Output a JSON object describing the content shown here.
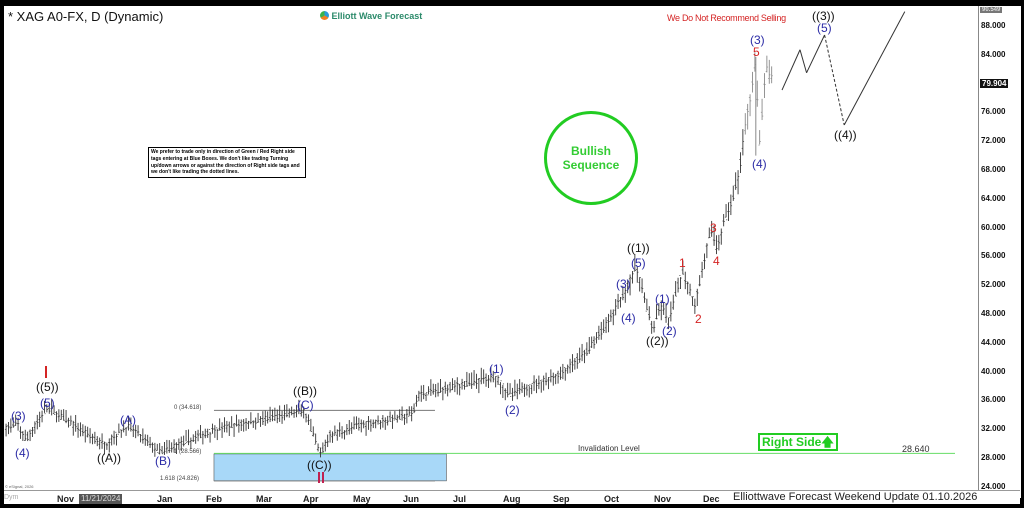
{
  "header": {
    "title": "* XAG A0-FX, D (Dynamic)",
    "logo_text": "Elliott Wave Forecast"
  },
  "notice": "We prefer to trade only in direction of Green / Red Right side tags entering at Blue Boxes. We don't like trading Turning up/down arrows or against the direction of Right side tags and we don't like trading the dotted lines.",
  "warning": "We Do Not Recommend Selling",
  "bullish": {
    "line1": "Bullish",
    "line2": "Sequence"
  },
  "right_side": {
    "label": "Right Side",
    "icon": "arrow-up-icon"
  },
  "invalidation": {
    "label": "Invalidation Level",
    "value": "28.640"
  },
  "fib": {
    "zero": "0 (34.618)",
    "one": "1 (28.566)",
    "ext": "1.618 (24.826)"
  },
  "footer": "Elliottwave Forecast Weekend  Update 01.10.2026",
  "copyright": "© eSignal, 2026",
  "cursor_date": "11/21/2024",
  "corner": "Dym",
  "colors": {
    "wave_blue": "#2b2ba6",
    "wave_red": "#d42424",
    "green": "#22cc22",
    "blue_box": "#a8d8f8"
  },
  "waves": {
    "w3a": "(3)",
    "w4a": "(4)",
    "w5a": "(5)",
    "w5b": "((5))",
    "I": "I",
    "A2": "((A))",
    "A": "(A)",
    "B": "(B)",
    "B2": "((B))",
    "C": "(C)",
    "C2": "((C))",
    "II": "II",
    "w1": "(1)",
    "w2": "(2)",
    "w1b": "((1))",
    "w5c": "(5)",
    "w3c": "(3)",
    "w4c": "(4)",
    "w2b": "((2))",
    "w1d": "(1)",
    "w2d": "(2)",
    "r1": "1",
    "r2": "2",
    "r3": "3",
    "r4": "4",
    "r5": "5",
    "w3e": "(3)",
    "w4e": "(4)",
    "w3b": "((3))",
    "w5e": "(5)",
    "w4b": "((4))"
  },
  "chart_data": {
    "type": "ohlc",
    "ylim": [
      24,
      90.549
    ],
    "yticks": [
      "88.000",
      "84.000",
      "80.000",
      "76.000",
      "72.000",
      "68.000",
      "64.000",
      "60.000",
      "56.000",
      "52.000",
      "48.000",
      "44.000",
      "40.000",
      "36.000",
      "32.000",
      "28.000",
      "24.000"
    ],
    "last_price": "79.904",
    "top_price": "90.549",
    "xticks": [
      "Nov",
      "Dec",
      "Jan",
      "Feb",
      "Mar",
      "Apr",
      "May",
      "Jun",
      "Jul",
      "Aug",
      "Sep",
      "Oct",
      "Nov",
      "Dec"
    ],
    "price_path": [
      [
        "2024-09-26",
        32.2
      ],
      [
        "2024-10-03",
        32.6
      ],
      [
        "2024-10-08",
        30.5
      ],
      [
        "2024-10-21",
        35.0
      ],
      [
        "2024-11-25",
        29.8
      ],
      [
        "2024-12-09",
        32.5
      ],
      [
        "2024-12-29",
        28.8
      ],
      [
        "2025-01-31",
        31.9
      ],
      [
        "2025-03-27",
        34.6
      ],
      [
        "2025-04-06",
        28.4
      ],
      [
        "2025-04-12",
        31.2
      ],
      [
        "2025-05-01",
        32.6
      ],
      [
        "2025-06-01",
        34.0
      ],
      [
        "2025-06-05",
        36.8
      ],
      [
        "2025-07-22",
        39.3
      ],
      [
        "2025-07-30",
        36.8
      ],
      [
        "2025-08-30",
        39.5
      ],
      [
        "2025-09-14",
        42.3
      ],
      [
        "2025-09-30",
        47.2
      ],
      [
        "2025-10-16",
        54.4
      ],
      [
        "2025-10-26",
        45.8
      ],
      [
        "2025-10-31",
        49.0
      ],
      [
        "2025-11-05",
        46.9
      ],
      [
        "2025-11-13",
        54.1
      ],
      [
        "2025-11-21",
        49.3
      ],
      [
        "2025-11-30",
        59.4
      ],
      [
        "2025-12-04",
        57.3
      ],
      [
        "2025-12-17",
        66.6
      ],
      [
        "2025-12-28",
        83.7
      ],
      [
        "2025-12-30",
        70.8
      ],
      [
        "2026-01-03",
        82.0
      ],
      [
        "2026-01-08",
        79.9
      ]
    ],
    "projection": [
      [
        "2026-01-13",
        79.1
      ],
      [
        "2026-01-24",
        84.7
      ],
      [
        "2026-01-28",
        81.5
      ],
      [
        "2026-02-08",
        86.75
      ],
      [
        "2026-02-20",
        74.25,
        "dashed"
      ],
      [
        "2026-03-29",
        90.0
      ]
    ],
    "blue_box": [
      24.826,
      28.566
    ],
    "fib_levels": [
      34.618,
      28.566,
      24.826
    ],
    "invalidation_level": 28.64
  }
}
